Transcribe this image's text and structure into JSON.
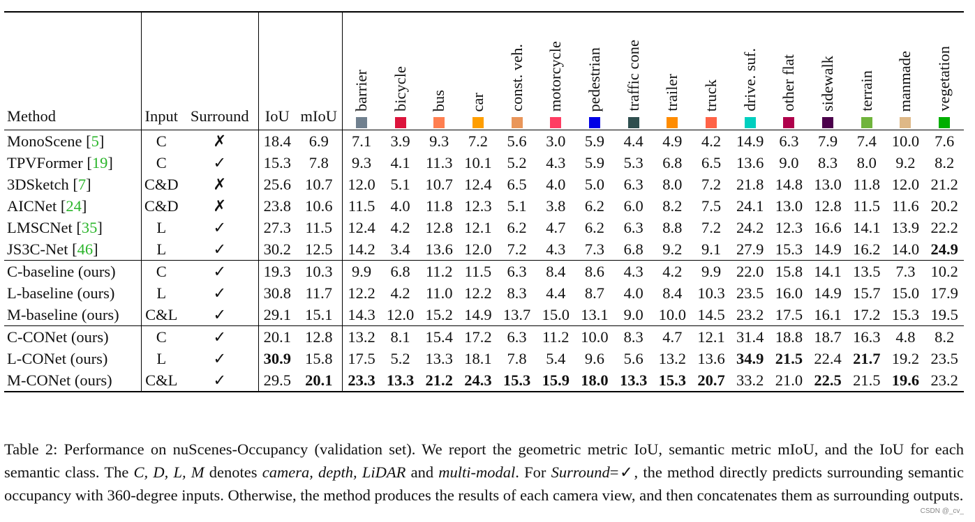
{
  "table": {
    "headers": {
      "method": "Method",
      "input": "Input",
      "surround": "Surround",
      "iou": "IoU",
      "miou": "mIoU"
    },
    "classes": [
      {
        "name": "barrier",
        "color": "#70808f"
      },
      {
        "name": "bicycle",
        "color": "#dc143c"
      },
      {
        "name": "bus",
        "color": "#ff7f50"
      },
      {
        "name": "car",
        "color": "#ff9e00"
      },
      {
        "name": "const. veh.",
        "color": "#e9965a"
      },
      {
        "name": "motorcycle",
        "color": "#ff3d63"
      },
      {
        "name": "pedestrian",
        "color": "#0000e6"
      },
      {
        "name": "traffic cone",
        "color": "#2f4f4f"
      },
      {
        "name": "trailer",
        "color": "#ff8c00"
      },
      {
        "name": "truck",
        "color": "#ff6347"
      },
      {
        "name": "drive. suf.",
        "color": "#00cfbf"
      },
      {
        "name": "other flat",
        "color": "#af004b"
      },
      {
        "name": "sidewalk",
        "color": "#4b004b"
      },
      {
        "name": "terrain",
        "color": "#70b43c"
      },
      {
        "name": "manmade",
        "color": "#deb887"
      },
      {
        "name": "vegetation",
        "color": "#00af00"
      }
    ],
    "groups": [
      [
        {
          "method": "MonoScene",
          "cite": "5",
          "input": "C",
          "surround": "✗",
          "iou": "18.4",
          "miou": "6.9",
          "vals": [
            "7.1",
            "3.9",
            "9.3",
            "7.2",
            "5.6",
            "3.0",
            "5.9",
            "4.4",
            "4.9",
            "4.2",
            "14.9",
            "6.3",
            "7.9",
            "7.4",
            "10.0",
            "7.6"
          ],
          "bold": []
        },
        {
          "method": "TPVFormer",
          "cite": "19",
          "input": "C",
          "surround": "✓",
          "iou": "15.3",
          "miou": "7.8",
          "vals": [
            "9.3",
            "4.1",
            "11.3",
            "10.1",
            "5.2",
            "4.3",
            "5.9",
            "5.3",
            "6.8",
            "6.5",
            "13.6",
            "9.0",
            "8.3",
            "8.0",
            "9.2",
            "8.2"
          ],
          "bold": []
        },
        {
          "method": "3DSketch",
          "cite": "7",
          "input": "C&D",
          "surround": "✗",
          "iou": "25.6",
          "miou": "10.7",
          "vals": [
            "12.0",
            "5.1",
            "10.7",
            "12.4",
            "6.5",
            "4.0",
            "5.0",
            "6.3",
            "8.0",
            "7.2",
            "21.8",
            "14.8",
            "13.0",
            "11.8",
            "12.0",
            "21.2"
          ],
          "bold": []
        },
        {
          "method": "AICNet",
          "cite": "24",
          "input": "C&D",
          "surround": "✗",
          "iou": "23.8",
          "miou": "10.6",
          "vals": [
            "11.5",
            "4.0",
            "11.8",
            "12.3",
            "5.1",
            "3.8",
            "6.2",
            "6.0",
            "8.2",
            "7.5",
            "24.1",
            "13.0",
            "12.8",
            "11.5",
            "11.6",
            "20.2"
          ],
          "bold": []
        },
        {
          "method": "LMSCNet",
          "cite": "35",
          "input": "L",
          "surround": "✓",
          "iou": "27.3",
          "miou": "11.5",
          "vals": [
            "12.4",
            "4.2",
            "12.8",
            "12.1",
            "6.2",
            "4.7",
            "6.2",
            "6.3",
            "8.8",
            "7.2",
            "24.2",
            "12.3",
            "16.6",
            "14.1",
            "13.9",
            "22.2"
          ],
          "bold": []
        },
        {
          "method": "JS3C-Net",
          "cite": "46",
          "input": "L",
          "surround": "✓",
          "iou": "30.2",
          "miou": "12.5",
          "vals": [
            "14.2",
            "3.4",
            "13.6",
            "12.0",
            "7.2",
            "4.3",
            "7.3",
            "6.8",
            "9.2",
            "9.1",
            "27.9",
            "15.3",
            "14.9",
            "16.2",
            "14.0",
            "24.9"
          ],
          "bold": [
            "v15"
          ]
        }
      ],
      [
        {
          "method": "C-baseline (ours)",
          "cite": "",
          "input": "C",
          "surround": "✓",
          "iou": "19.3",
          "miou": "10.3",
          "vals": [
            "9.9",
            "6.8",
            "11.2",
            "11.5",
            "6.3",
            "8.4",
            "8.6",
            "4.3",
            "4.2",
            "9.9",
            "22.0",
            "15.8",
            "14.1",
            "13.5",
            "7.3",
            "10.2"
          ],
          "bold": []
        },
        {
          "method": "L-baseline (ours)",
          "cite": "",
          "input": "L",
          "surround": "✓",
          "iou": "30.8",
          "miou": "11.7",
          "vals": [
            "12.2",
            "4.2",
            "11.0",
            "12.2",
            "8.3",
            "4.4",
            "8.7",
            "4.0",
            "8.4",
            "10.3",
            "23.5",
            "16.0",
            "14.9",
            "15.7",
            "15.0",
            "17.9"
          ],
          "bold": []
        },
        {
          "method": "M-baseline (ours)",
          "cite": "",
          "input": "C&L",
          "surround": "✓",
          "iou": "29.1",
          "miou": "15.1",
          "vals": [
            "14.3",
            "12.0",
            "15.2",
            "14.9",
            "13.7",
            "15.0",
            "13.1",
            "9.0",
            "10.0",
            "14.5",
            "23.2",
            "17.5",
            "16.1",
            "17.2",
            "15.3",
            "19.5"
          ],
          "bold": []
        }
      ],
      [
        {
          "method": "C-CONet (ours)",
          "cite": "",
          "input": "C",
          "surround": "✓",
          "iou": "20.1",
          "miou": "12.8",
          "vals": [
            "13.2",
            "8.1",
            "15.4",
            "17.2",
            "6.3",
            "11.2",
            "10.0",
            "8.3",
            "4.7",
            "12.1",
            "31.4",
            "18.8",
            "18.7",
            "16.3",
            "4.8",
            "8.2"
          ],
          "bold": []
        },
        {
          "method": "L-CONet (ours)",
          "cite": "",
          "input": "L",
          "surround": "✓",
          "iou": "30.9",
          "miou": "15.8",
          "vals": [
            "17.5",
            "5.2",
            "13.3",
            "18.1",
            "7.8",
            "5.4",
            "9.6",
            "5.6",
            "13.2",
            "13.6",
            "34.9",
            "21.5",
            "22.4",
            "21.7",
            "19.2",
            "23.5"
          ],
          "bold": [
            "iou",
            "v10",
            "v11",
            "v13"
          ]
        },
        {
          "method": "M-CONet (ours)",
          "cite": "",
          "input": "C&L",
          "surround": "✓",
          "iou": "29.5",
          "miou": "20.1",
          "vals": [
            "23.3",
            "13.3",
            "21.2",
            "24.3",
            "15.3",
            "15.9",
            "18.0",
            "13.3",
            "15.3",
            "20.7",
            "33.2",
            "21.0",
            "22.5",
            "21.5",
            "19.6",
            "23.2"
          ],
          "bold": [
            "miou",
            "v0",
            "v1",
            "v2",
            "v3",
            "v4",
            "v5",
            "v6",
            "v7",
            "v8",
            "v9",
            "v12",
            "v14"
          ]
        }
      ]
    ]
  },
  "caption": {
    "label": "Table 2:",
    "p1": " Performance on nuScenes-Occupancy (validation set). We report the geometric metric IoU, semantic metric mIoU, and the IoU for each semantic class. The ",
    "p2": "C, D, L, M",
    "p3": " denotes ",
    "p4": "camera, depth, LiDAR",
    "p5": " and ",
    "p6": "multi-modal",
    "p7": ". For ",
    "p8": "Surround",
    "p9": "=✓, the method directly predicts surrounding semantic occupancy with 360-degree inputs. Otherwise, the method produces the results of each camera view, and then concatenates them as surrounding outputs."
  },
  "watermark": "CSDN @_cv_"
}
